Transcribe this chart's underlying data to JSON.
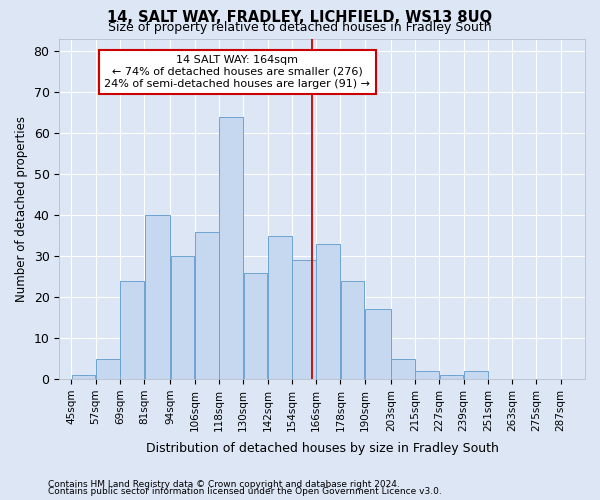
{
  "title1": "14, SALT WAY, FRADLEY, LICHFIELD, WS13 8UQ",
  "title2": "Size of property relative to detached houses in Fradley South",
  "xlabel": "Distribution of detached houses by size in Fradley South",
  "ylabel": "Number of detached properties",
  "footnote1": "Contains HM Land Registry data © Crown copyright and database right 2024.",
  "footnote2": "Contains public sector information licensed under the Open Government Licence v3.0.",
  "annotation_line1": "14 SALT WAY: 164sqm",
  "annotation_line2": "← 74% of detached houses are smaller (276)",
  "annotation_line3": "24% of semi-detached houses are larger (91) →",
  "bar_left_edges": [
    45,
    57,
    69,
    81,
    94,
    106,
    118,
    130,
    142,
    154,
    166,
    178,
    190,
    203,
    215,
    227,
    239,
    251,
    263,
    275
  ],
  "bar_widths": [
    12,
    12,
    12,
    13,
    12,
    12,
    12,
    12,
    12,
    12,
    12,
    12,
    13,
    12,
    12,
    12,
    12,
    12,
    12,
    12
  ],
  "bar_heights": [
    1,
    5,
    24,
    40,
    30,
    36,
    64,
    26,
    35,
    29,
    33,
    24,
    17,
    5,
    2,
    1,
    2,
    0,
    0,
    0
  ],
  "tick_labels": [
    "45sqm",
    "57sqm",
    "69sqm",
    "81sqm",
    "94sqm",
    "106sqm",
    "118sqm",
    "130sqm",
    "142sqm",
    "154sqm",
    "166sqm",
    "178sqm",
    "190sqm",
    "203sqm",
    "215sqm",
    "227sqm",
    "239sqm",
    "251sqm",
    "263sqm",
    "275sqm",
    "287sqm"
  ],
  "tick_positions": [
    45,
    57,
    69,
    81,
    94,
    106,
    118,
    130,
    142,
    154,
    166,
    178,
    190,
    203,
    215,
    227,
    239,
    251,
    263,
    275,
    287
  ],
  "bar_color": "#c5d8f0",
  "bar_edge_color": "#6ea3d0",
  "vline_x": 164,
  "vline_color": "#cc0000",
  "ylim": [
    0,
    83
  ],
  "xlim": [
    39,
    299
  ],
  "background_color": "#dce6f5",
  "grid_color": "#ffffff",
  "annotation_box_color": "#ffffff",
  "annotation_box_edge": "#cc0000",
  "yticks": [
    0,
    10,
    20,
    30,
    40,
    50,
    60,
    70,
    80
  ]
}
